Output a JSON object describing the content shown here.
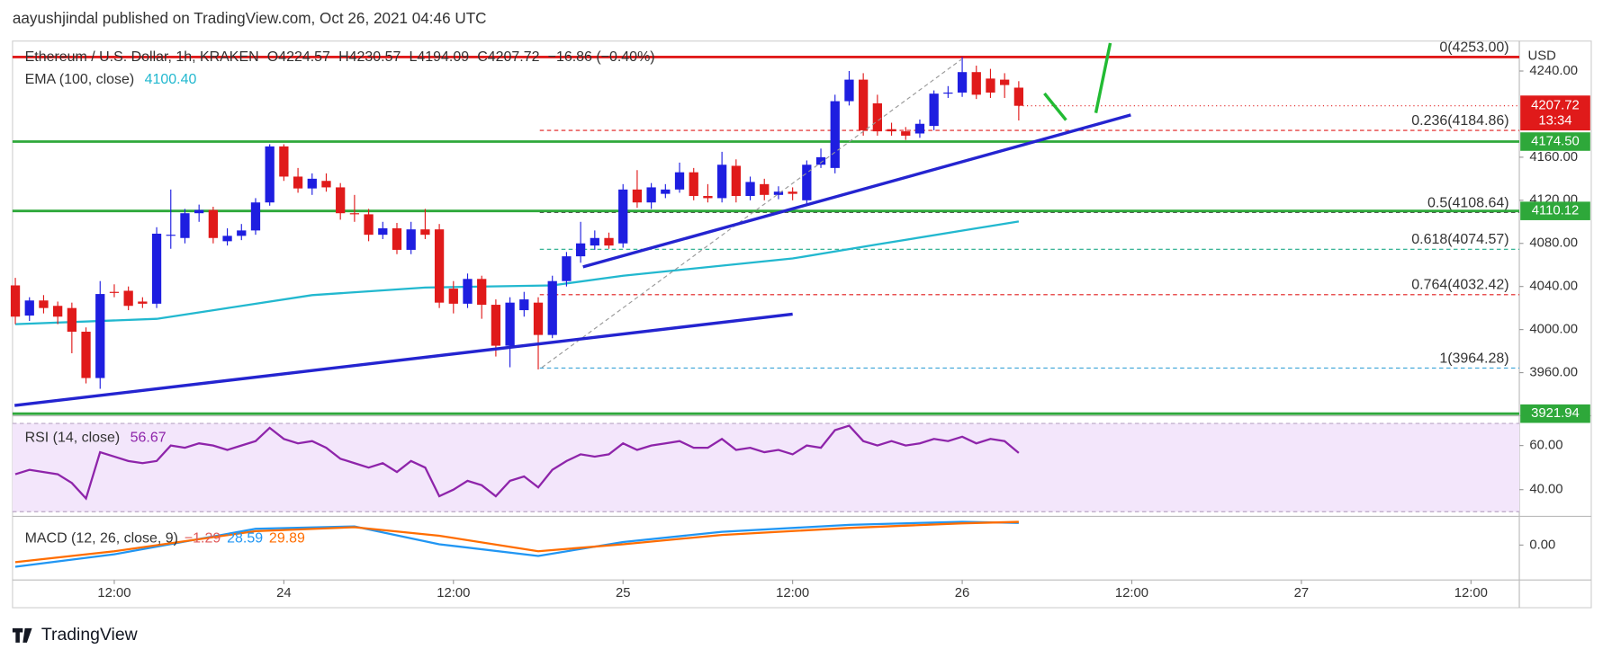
{
  "header": {
    "title": "aayushjindal published on TradingView.com, Oct 26, 2021 04:46 UTC"
  },
  "footer": {
    "brand": "TradingView"
  },
  "chart_data": {
    "type": "candlestick",
    "title": "Ethereum / U.S. Dollar, 1h, KRAKEN",
    "ohlc_legend": [
      "O4224.57",
      "H4230.57",
      "L4194.09",
      "C4207.72",
      "−16.86 (−0.40%)"
    ],
    "currency": "USD",
    "x": [
      5,
      6,
      7,
      8,
      9,
      10,
      11,
      12,
      13,
      14,
      15,
      16,
      17,
      18,
      19,
      20,
      21,
      22,
      23,
      24,
      25,
      26,
      27,
      28,
      29,
      30,
      31,
      32,
      33,
      34,
      35,
      36,
      37,
      38,
      39,
      40,
      41,
      42,
      43,
      44,
      45,
      46,
      47,
      48,
      49,
      50,
      51,
      52,
      53,
      54,
      55,
      56,
      57,
      58,
      59,
      60,
      61,
      62,
      63,
      64,
      65,
      66,
      67,
      68,
      69,
      70,
      71,
      72,
      73,
      74,
      75,
      76
    ],
    "xlim": [
      4.8,
      111.42
    ],
    "xticks": [
      {
        "value": 12,
        "label": "12:00"
      },
      {
        "value": 24,
        "label": "24"
      },
      {
        "value": 36,
        "label": "12:00"
      },
      {
        "value": 48,
        "label": "25"
      },
      {
        "value": 60,
        "label": "12:00"
      },
      {
        "value": 72,
        "label": "26"
      },
      {
        "value": 84,
        "label": "12:00"
      },
      {
        "value": 96,
        "label": "27"
      },
      {
        "value": 108,
        "label": "12:00"
      }
    ],
    "open": [
      4041,
      4013,
      4027,
      4022,
      4020,
      3998,
      3955,
      4035,
      4036,
      4026,
      4024,
      4088,
      4085,
      4108,
      4111,
      4082,
      4087,
      4092,
      4118,
      4170,
      4142,
      4131,
      4138,
      4132,
      4108,
      4107,
      4088,
      4094,
      4074,
      4093,
      4093,
      4038,
      4024,
      4047,
      4023,
      3985,
      4018,
      4025,
      3995,
      4045,
      4068,
      4078,
      4085,
      4080,
      4130,
      4118,
      4126,
      4130,
      4146,
      4124,
      4122,
      4152,
      4124,
      4135,
      4125,
      4128,
      4120,
      4153,
      4150,
      4212,
      4232,
      4210,
      4186,
      4184,
      4182,
      4189,
      4219,
      4220,
      4239,
      4233,
      4232,
      4224.57
    ],
    "high": [
      4048,
      4030,
      4032,
      4026,
      4025,
      4002,
      4045,
      4042,
      4040,
      4030,
      4095,
      4130,
      4112,
      4116,
      4114,
      4094,
      4098,
      4122,
      4172,
      4172,
      4150,
      4145,
      4145,
      4136,
      4125,
      4112,
      4100,
      4099,
      4100,
      4112,
      4098,
      4045,
      4052,
      4050,
      4028,
      4030,
      4035,
      4030,
      4050,
      4072,
      4100,
      4092,
      4090,
      4135,
      4148,
      4136,
      4135,
      4155,
      4150,
      4135,
      4165,
      4158,
      4142,
      4140,
      4133,
      4132,
      4157,
      4168,
      4218,
      4240,
      4238,
      4218,
      4192,
      4188,
      4195,
      4222,
      4226,
      4253,
      4245,
      4242,
      4238,
      4230.57
    ],
    "low": [
      4005,
      4008,
      4015,
      4005,
      3978,
      3950,
      3945,
      4030,
      4018,
      4020,
      4020,
      4075,
      4080,
      4100,
      4080,
      4078,
      4083,
      4088,
      4115,
      4138,
      4127,
      4125,
      4128,
      4102,
      4100,
      4082,
      4084,
      4070,
      4070,
      4084,
      4020,
      4015,
      4020,
      4010,
      3975,
      3965,
      4012,
      3963,
      3992,
      4040,
      4062,
      4074,
      4075,
      4076,
      4113,
      4112,
      4122,
      4127,
      4120,
      4118,
      4118,
      4118,
      4120,
      4120,
      4121,
      4120,
      4115,
      4150,
      4145,
      4208,
      4180,
      4180,
      4180,
      4176,
      4178,
      4185,
      4215,
      4216,
      4214,
      4215,
      4215,
      4194.09
    ],
    "close": [
      4012,
      4027,
      4020,
      4012,
      3998,
      3955,
      4033,
      4034,
      4022,
      4024,
      4089,
      4088,
      4108,
      4111,
      4085,
      4087,
      4092,
      4118,
      4170,
      4142,
      4131,
      4140,
      4132,
      4108,
      4107,
      4088,
      4094,
      4074,
      4093,
      4088,
      4025,
      4024,
      4047,
      4023,
      3985,
      4025,
      4028,
      3995,
      4045,
      4068,
      4080,
      4085,
      4078,
      4130,
      4118,
      4132,
      4130,
      4146,
      4124,
      4122,
      4153,
      4124,
      4137,
      4125,
      4128,
      4126,
      4153,
      4160,
      4212,
      4232,
      4185,
      4184,
      4184,
      4180,
      4191,
      4219,
      4220,
      4239,
      4218,
      4220,
      4227,
      4207.72
    ],
    "up_color": "#1e1ee0",
    "down_color": "#e01a1a",
    "ylim": [
      3920,
      4264
    ],
    "yticks": [
      {
        "value": 4240,
        "label": "4240.00"
      },
      {
        "value": 4160,
        "label": "4160.00"
      },
      {
        "value": 4120,
        "label": "4120.00"
      },
      {
        "value": 4080,
        "label": "4080.00"
      },
      {
        "value": 4040,
        "label": "4040.00"
      },
      {
        "value": 4000,
        "label": "4000.00"
      },
      {
        "value": 3960,
        "label": "3960.00"
      }
    ],
    "resistance": {
      "value": 4253,
      "color": "#e01a1a"
    },
    "levels": [
      {
        "value": 4174.5,
        "label": "4174.50",
        "color": "#2ea83a"
      },
      {
        "value": 4110.12,
        "label": "4110.12",
        "color": "#2ea83a"
      },
      {
        "value": 3921.94,
        "label": "3921.94",
        "color": "#2ea83a"
      }
    ],
    "last_price": {
      "value": 4207.72,
      "label": "4207.72",
      "countdown": "13:34",
      "color": "#e01a1a"
    },
    "fib_levels": [
      {
        "value": 4253,
        "label": "0(4253.00)",
        "color": "#888888"
      },
      {
        "value": 4184.86,
        "label": "0.236(4184.86)",
        "color": "#e01a1a"
      },
      {
        "value": 4108.64,
        "label": "0.5(4108.64)",
        "color": "#555555"
      },
      {
        "value": 4074.57,
        "label": "0.618(4074.57)",
        "color": "#1faa88"
      },
      {
        "value": 4032.42,
        "label": "0.764(4032.42)",
        "color": "#e01a1a"
      },
      {
        "value": 3964.28,
        "label": "1(3964.28)",
        "color": "#3aa3d8"
      }
    ],
    "ema": {
      "name": "EMA (100, close)",
      "value_label": "4100.40",
      "color": "#22b8cf",
      "x": [
        5,
        15,
        20,
        26,
        34,
        43,
        48,
        60,
        66,
        76
      ],
      "values": [
        4005,
        4010,
        4020,
        4032,
        4039,
        4041,
        4050,
        4066,
        4079,
        4100.4
      ]
    },
    "rsi": {
      "name": "RSI (14, close)",
      "value_label": "56.67",
      "color": "#8e24aa",
      "band": [
        30,
        70
      ],
      "ylim": [
        27.9,
        73.5
      ],
      "yticks": [
        {
          "value": 60,
          "label": "60.00"
        },
        {
          "value": 40,
          "label": "40.00"
        }
      ],
      "values": [
        47,
        49,
        48,
        47,
        43,
        36,
        57,
        55,
        53,
        52,
        53,
        60,
        59,
        61,
        60,
        58,
        60,
        62,
        68,
        63,
        61,
        62,
        59,
        54,
        52,
        50,
        52,
        48,
        53,
        50,
        37,
        40,
        44,
        42,
        37,
        44,
        46,
        41,
        49,
        53,
        56,
        55,
        56,
        61,
        58,
        60,
        61,
        62,
        59,
        59,
        63,
        58,
        59,
        57,
        58,
        56,
        60,
        59,
        67,
        69,
        62,
        60,
        62,
        60,
        61,
        63,
        62,
        64,
        61,
        63,
        62,
        56.67
      ]
    },
    "macd": {
      "name": "MACD (12, 26, close, 9)",
      "value_labels": [
        "−1.29",
        "28.59",
        "29.89"
      ],
      "label_colors": [
        "#e05a5a",
        "#2196f3",
        "#ff6d00"
      ],
      "ylim": [
        -45,
        37
      ],
      "yticks": [
        {
          "value": 0,
          "label": "0.00"
        }
      ],
      "series": [
        {
          "color": "#2196f3",
          "x": [
            5,
            12,
            22,
            29,
            35,
            42,
            48,
            55,
            64,
            72,
            76
          ],
          "values": [
            -28,
            -12,
            21,
            24,
            1,
            -14,
            4,
            17,
            26,
            30,
            28.59
          ]
        },
        {
          "color": "#ff6d00",
          "x": [
            5,
            12,
            22,
            29,
            35,
            42,
            48,
            55,
            64,
            72,
            76
          ],
          "values": [
            -22,
            -8,
            18,
            23,
            12,
            -8,
            1,
            13,
            22,
            28,
            29.89
          ]
        }
      ]
    }
  }
}
